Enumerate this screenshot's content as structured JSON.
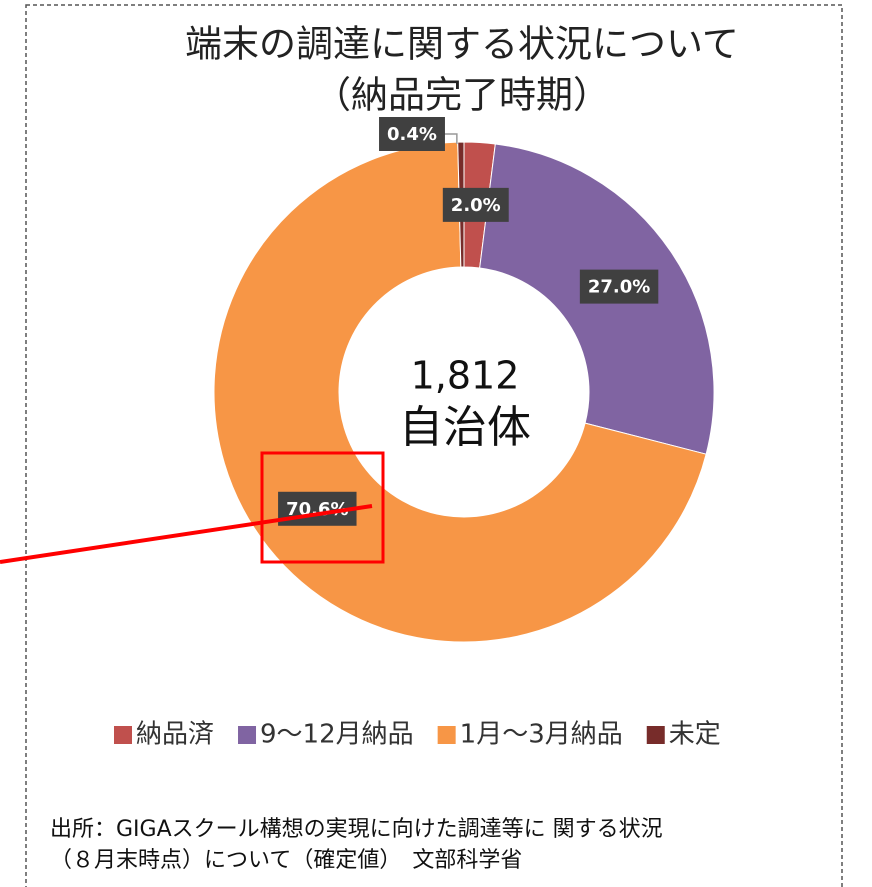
{
  "chart_data": {
    "type": "donut",
    "title": "端末の調達に関する状況について",
    "subtitle": "（納品完了時期）",
    "center_labels": [
      "1,812",
      "自治体"
    ],
    "categories": [
      "納品済",
      "9～12月納品",
      "1月～3月納品",
      "未定"
    ],
    "values": [
      2.0,
      27.0,
      70.6,
      0.4
    ],
    "value_labels": [
      "2.0%",
      "27.0%",
      "70.6%",
      "0.4%"
    ],
    "colors": [
      "#c0504d",
      "#8064a2",
      "#f79646",
      "#772c2a"
    ],
    "legend": "bottom",
    "source": [
      "出所：GIGAスクール構想の実現に向けた調達等に 関する状況",
      "（８月末時点）について（確定値）　文部科学省"
    ]
  }
}
